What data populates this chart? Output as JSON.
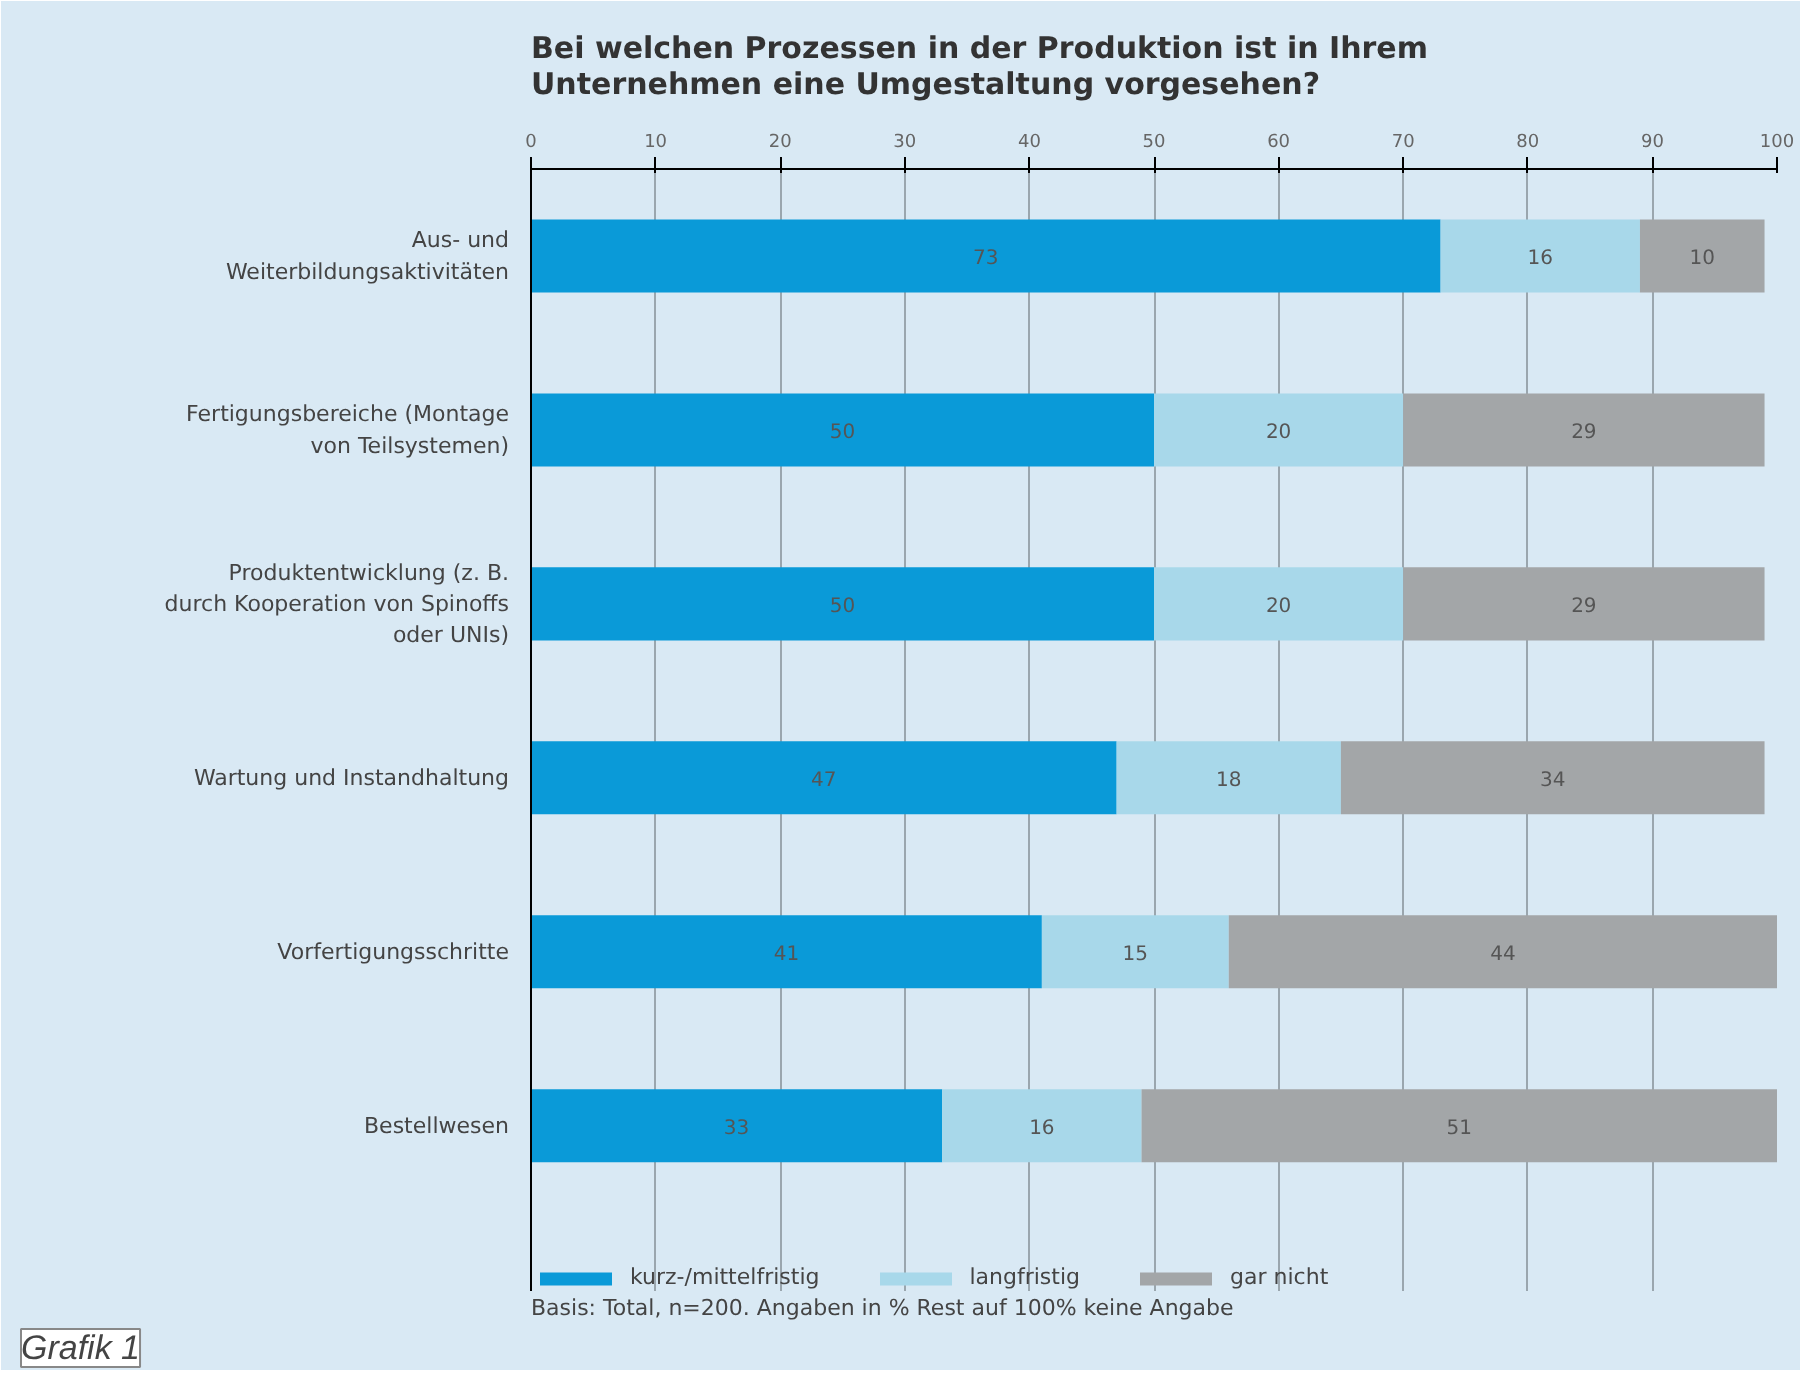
{
  "chart_data": {
    "type": "bar",
    "orientation": "horizontal",
    "stacked": true,
    "title": "Bei welchen Prozessen in der Produktion ist in Ihrem Unternehmen eine Umgestaltung vorgesehen?",
    "categories": [
      "Aus- und Weiterbildungsaktivitäten",
      "Fertigungsbereiche (Montage von Teilsystemen)",
      "Produktentwicklung (z. B. durch Kooperation von Spinoffs oder UNIs)",
      "Wartung und Instandhaltung",
      "Vorfertigungsschritte",
      "Bestellwesen"
    ],
    "series": [
      {
        "name": "kurz-/mittelfristig",
        "color": "#0a9ad8",
        "values": [
          73,
          50,
          50,
          47,
          41,
          33
        ]
      },
      {
        "name": "langfristig",
        "color": "#a8d8ea",
        "values": [
          16,
          20,
          20,
          18,
          15,
          16
        ]
      },
      {
        "name": "gar nicht",
        "color": "#a3a6a8",
        "values": [
          10,
          29,
          29,
          34,
          44,
          51
        ]
      }
    ],
    "xlim": [
      0,
      100
    ],
    "xticks": [
      0,
      10,
      20,
      30,
      40,
      50,
      60,
      70,
      80,
      90,
      100
    ],
    "grid": "x",
    "legend": "bottom",
    "data_labels": true,
    "annotations": [
      "Basis: Total, n=200. Angaben in % Rest auf 100% keine Angabe",
      "Grafik 1"
    ]
  }
}
